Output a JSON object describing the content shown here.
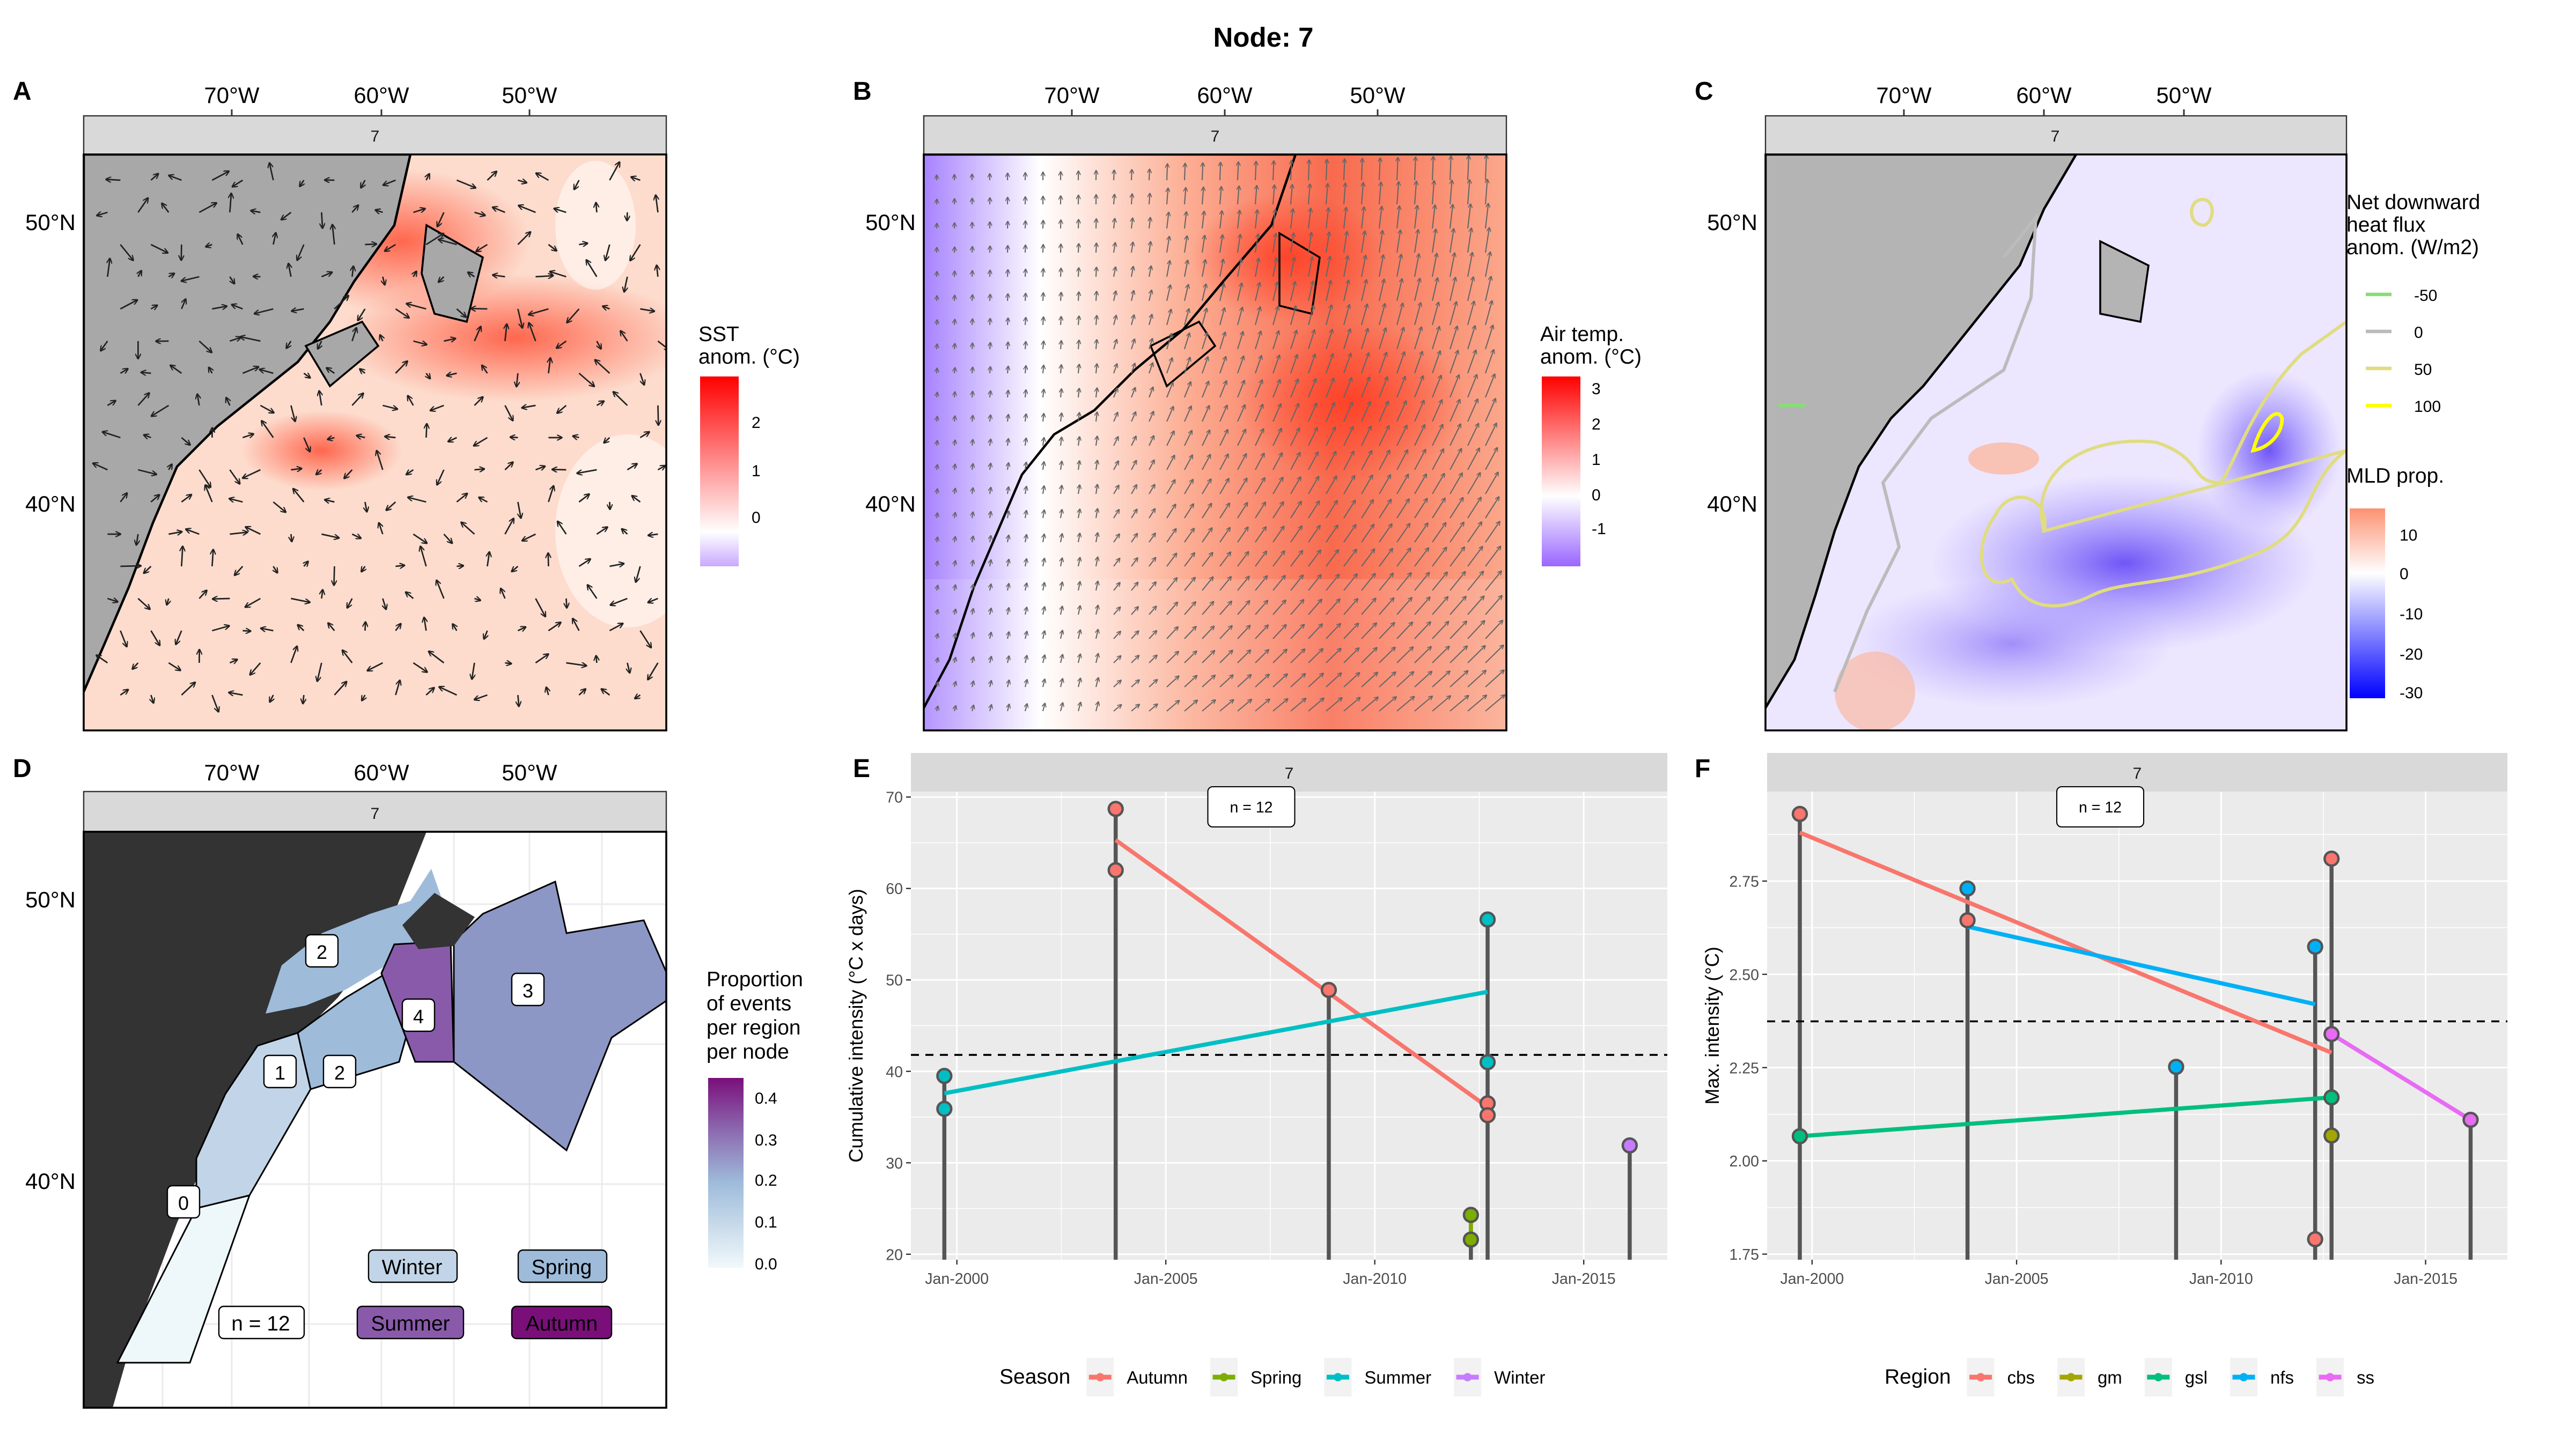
{
  "title": "Node: 7",
  "panels": {
    "A": {
      "letter": "A",
      "strip": "7",
      "lon_ticks": [
        "70°W",
        "60°W",
        "50°W"
      ],
      "lat_ticks": [
        "50°N",
        "40°N"
      ],
      "legend": {
        "title_lines": [
          "SST",
          "anom. (°C)"
        ],
        "ticks": [
          "2",
          "1",
          "0"
        ],
        "range": [
          -0.5,
          2.8
        ],
        "colors": [
          "#c9a9ff",
          "#ffffff",
          "#ff0000"
        ]
      }
    },
    "B": {
      "letter": "B",
      "strip": "7",
      "lon_ticks": [
        "70°W",
        "60°W",
        "50°W"
      ],
      "lat_ticks": [
        "50°N",
        "40°N"
      ],
      "legend": {
        "title_lines": [
          "Air temp.",
          "anom. (°C)"
        ],
        "ticks": [
          "3",
          "2",
          "1",
          "0",
          "-1"
        ],
        "range": [
          -1.9,
          3.3
        ],
        "colors": [
          "#9966ff",
          "#ffffff",
          "#ff0000"
        ]
      }
    },
    "C": {
      "letter": "C",
      "strip": "7",
      "lon_ticks": [
        "70°W",
        "60°W",
        "50°W"
      ],
      "lat_ticks": [
        "50°N",
        "40°N"
      ],
      "contour_legend": {
        "title_lines": [
          "Net downward",
          "heat flux",
          "anom. (W/m2)"
        ],
        "items": [
          {
            "label": "-50",
            "color": "#88dd77"
          },
          {
            "label": "0",
            "color": "#bbbbbb"
          },
          {
            "label": "50",
            "color": "#e0dc80"
          },
          {
            "label": "100",
            "color": "#ffff00"
          }
        ]
      },
      "legend": {
        "title_lines": [
          "MLD prop."
        ],
        "ticks": [
          "10",
          "0",
          "-10",
          "-20",
          "-30"
        ],
        "range": [
          -31,
          16
        ],
        "colors": [
          "#0000ff",
          "#ffffff",
          "#fc9272"
        ]
      }
    },
    "D": {
      "letter": "D",
      "strip": "7",
      "lon_ticks": [
        "70°W",
        "60°W",
        "50°W"
      ],
      "lat_ticks": [
        "50°N",
        "40°N"
      ],
      "region_labels": [
        "0",
        "1",
        "2",
        "2",
        "4",
        "3"
      ],
      "season_labels": [
        "Winter",
        "Spring",
        "Summer",
        "Autumn"
      ],
      "n_label": "n = 12",
      "legend": {
        "title_lines": [
          "Proportion",
          "of events",
          "per region",
          "per node"
        ],
        "ticks": [
          "0.4",
          "0.3",
          "0.2",
          "0.1",
          "0.0"
        ],
        "range": [
          0,
          0.42
        ],
        "colors": [
          "#f1f9fb",
          "#9ebbda",
          "#8c6bb1",
          "#7a0f7a"
        ]
      }
    }
  },
  "chart_data": [
    {
      "panel": "E",
      "type": "scatter",
      "strip": "7",
      "annotation": "n = 12",
      "xlabel": "",
      "ylabel": "Cumulative intensity (°C x days)",
      "x_ticks": [
        "Jan-2000",
        "Jan-2005",
        "Jan-2010",
        "Jan-2015"
      ],
      "x_tick_years": [
        2000,
        2005,
        2010,
        2015
      ],
      "xlim": [
        1998.9,
        2017.0
      ],
      "ylim": [
        19.4,
        70.6
      ],
      "y_ticks": [
        20,
        30,
        40,
        50,
        60,
        70
      ],
      "hline": 41.8,
      "legend_title": "Season",
      "legend_position": "bottom",
      "series": [
        {
          "name": "Autumn",
          "color": "#f8766d",
          "points": [
            [
              2003.8,
              68.7
            ],
            [
              2003.8,
              62.0
            ],
            [
              2008.9,
              48.9
            ],
            [
              2012.7,
              36.5
            ],
            [
              2012.7,
              35.2
            ]
          ],
          "trend": [
            [
              2003.8,
              65.3
            ],
            [
              2012.7,
              36.1
            ]
          ]
        },
        {
          "name": "Spring",
          "color": "#7cae00",
          "points": [
            [
              2012.3,
              24.3
            ],
            [
              2012.3,
              21.6
            ]
          ],
          "trend": [
            [
              2012.3,
              24.3
            ],
            [
              2012.3,
              21.6
            ]
          ]
        },
        {
          "name": "Summer",
          "color": "#00bfc4",
          "points": [
            [
              1999.7,
              39.5
            ],
            [
              1999.7,
              35.9
            ],
            [
              2012.7,
              56.6
            ],
            [
              2012.7,
              41.0
            ]
          ],
          "trend": [
            [
              1999.7,
              37.6
            ],
            [
              2012.7,
              48.7
            ]
          ]
        },
        {
          "name": "Winter",
          "color": "#c77cff",
          "points": [
            [
              2016.1,
              31.9
            ]
          ],
          "trend": []
        }
      ],
      "stems": [
        [
          1999.7,
          39.5
        ],
        [
          2003.8,
          68.7
        ],
        [
          2008.9,
          48.9
        ],
        [
          2012.3,
          24.3
        ],
        [
          2012.7,
          56.6
        ],
        [
          2016.1,
          31.9
        ]
      ]
    },
    {
      "panel": "F",
      "type": "scatter",
      "strip": "7",
      "annotation": "n = 12",
      "xlabel": "",
      "ylabel": "Max. intensity (°C)",
      "x_ticks": [
        "Jan-2000",
        "Jan-2005",
        "Jan-2010",
        "Jan-2015"
      ],
      "x_tick_years": [
        2000,
        2005,
        2010,
        2015
      ],
      "xlim": [
        1998.9,
        2017.0
      ],
      "ylim": [
        1.735,
        2.99
      ],
      "y_ticks": [
        1.75,
        2.0,
        2.25,
        2.5,
        2.75
      ],
      "y_tick_labels": [
        "1.75",
        "2.00",
        "2.25",
        "2.50",
        "2.75"
      ],
      "hline": 2.374,
      "legend_title": "Region",
      "legend_position": "bottom",
      "series": [
        {
          "name": "cbs",
          "color": "#f8766d",
          "points": [
            [
              1999.7,
              2.93
            ],
            [
              2003.8,
              2.645
            ],
            [
              2012.3,
              1.79
            ],
            [
              2012.7,
              2.81
            ]
          ],
          "trend": [
            [
              1999.7,
              2.88
            ],
            [
              2012.7,
              2.29
            ]
          ]
        },
        {
          "name": "gm",
          "color": "#a3a500",
          "points": [
            [
              2012.7,
              2.068
            ]
          ],
          "trend": []
        },
        {
          "name": "gsl",
          "color": "#00bf7d",
          "points": [
            [
              1999.7,
              2.066
            ],
            [
              2012.7,
              2.17
            ]
          ],
          "trend": [
            [
              1999.7,
              2.066
            ],
            [
              2012.7,
              2.17
            ]
          ]
        },
        {
          "name": "nfs",
          "color": "#00b0f6",
          "points": [
            [
              2003.8,
              2.73
            ],
            [
              2008.9,
              2.252
            ],
            [
              2012.3,
              2.574
            ]
          ],
          "trend": [
            [
              2003.8,
              2.628
            ],
            [
              2012.3,
              2.42
            ]
          ]
        },
        {
          "name": "ss",
          "color": "#e76bf3",
          "points": [
            [
              2012.7,
              2.34
            ],
            [
              2016.1,
              2.11
            ]
          ],
          "trend": [
            [
              2012.7,
              2.34
            ],
            [
              2016.1,
              2.11
            ]
          ]
        }
      ],
      "stems": [
        [
          1999.7,
          2.93
        ],
        [
          2003.8,
          2.73
        ],
        [
          2008.9,
          2.252
        ],
        [
          2012.3,
          2.574
        ],
        [
          2012.7,
          2.81
        ],
        [
          2016.1,
          2.11
        ]
      ]
    }
  ]
}
